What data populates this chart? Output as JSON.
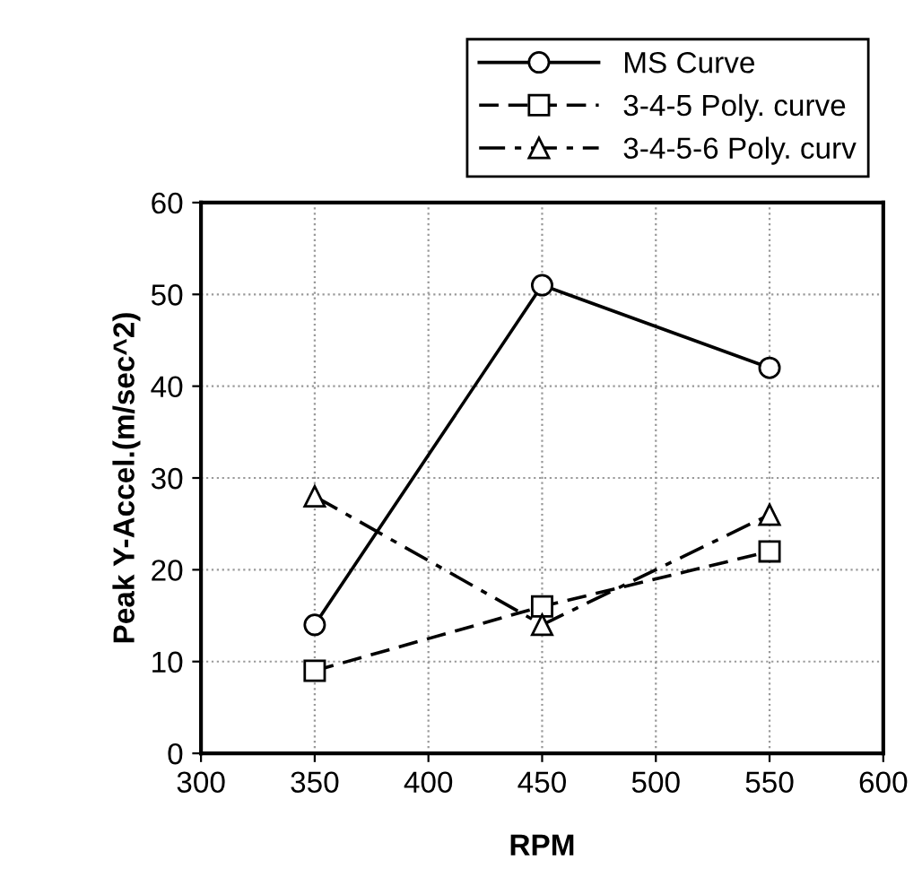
{
  "chart_data": {
    "type": "line",
    "xlabel": "RPM",
    "ylabel": "Peak Y-Accel.(m/sec^2)",
    "x": [
      350,
      450,
      550
    ],
    "series": [
      {
        "name": "MS Curve",
        "color": "#000000",
        "values": [
          14,
          51,
          42
        ],
        "marker": "circle",
        "line_style": "solid"
      },
      {
        "name": "3-4-5 Poly. curve",
        "color": "#000000",
        "values": [
          9,
          16,
          22
        ],
        "marker": "square",
        "line_style": "dashed"
      },
      {
        "name": "3-4-5-6 Poly. curv",
        "color": "#000000",
        "values": [
          28,
          14,
          26
        ],
        "marker": "triangle",
        "line_style": "dashdot"
      }
    ],
    "xlim": [
      300,
      600
    ],
    "xticks": [
      300,
      350,
      400,
      450,
      500,
      550,
      600
    ],
    "ylim": [
      0,
      60
    ],
    "yticks": [
      0,
      10,
      20,
      30,
      40,
      50,
      60
    ],
    "grid": true,
    "legend": "top right"
  }
}
